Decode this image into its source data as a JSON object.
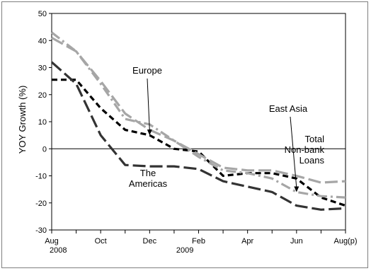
{
  "chart_data": {
    "type": "line",
    "title": "",
    "ylabel": "YOY Growth (%)",
    "xlabel": "",
    "ylim": [
      -30,
      50
    ],
    "yticks": [
      -30,
      -20,
      -10,
      0,
      10,
      20,
      30,
      40,
      50
    ],
    "x_range": [
      0,
      12
    ],
    "x_tick_positions": [
      0,
      1,
      2,
      3,
      4,
      5,
      6,
      7,
      8,
      9,
      10,
      11,
      12
    ],
    "x_tick_labels": [
      {
        "x": 0,
        "label": "Aug"
      },
      {
        "x": 2,
        "label": "Oct"
      },
      {
        "x": 4,
        "label": "Dec"
      },
      {
        "x": 6,
        "label": "Feb"
      },
      {
        "x": 8,
        "label": "Apr"
      },
      {
        "x": 10,
        "label": "Jun"
      },
      {
        "x": 12,
        "label": "Aug(p)"
      }
    ],
    "year_labels": [
      {
        "x": 0,
        "label": "2008"
      },
      {
        "x": 5,
        "label": "2009"
      }
    ],
    "grid": false,
    "zero_line": true,
    "series": [
      {
        "name": "Europe",
        "color": "#000000",
        "style": "dash",
        "x": [
          0,
          1,
          2,
          3,
          4,
          5,
          6,
          7,
          8,
          9,
          10,
          11,
          12
        ],
        "values": [
          25.5,
          25.5,
          15,
          7,
          5,
          0,
          -1,
          -10,
          -9,
          -9,
          -11,
          -18,
          -21
        ]
      },
      {
        "name": "The Americas",
        "color": "#333333",
        "style": "longdash",
        "x": [
          0,
          1,
          2,
          3,
          4,
          5,
          6,
          7,
          8,
          9,
          10,
          11,
          12
        ],
        "values": [
          32,
          24,
          5,
          -6,
          -6.5,
          -6.5,
          -7.5,
          -12,
          -14,
          -16,
          -21,
          -22.5,
          -22
        ]
      },
      {
        "name": "East Asia",
        "color": "#a6a6a6",
        "style": "dashdot",
        "x": [
          0,
          1,
          2,
          3,
          4,
          5,
          6,
          7,
          8,
          9,
          10,
          11,
          12
        ],
        "values": [
          43,
          36,
          24,
          11,
          9,
          3,
          -3,
          -8,
          -9,
          -11,
          -16,
          -17.5,
          -18
        ]
      },
      {
        "name": "Total Non-bank Loans",
        "color": "#a6a6a6",
        "style": "longdash",
        "x": [
          0,
          1,
          2,
          3,
          4,
          5,
          6,
          7,
          8,
          9,
          10,
          11,
          12
        ],
        "values": [
          41,
          36,
          25,
          13,
          7,
          3,
          -2,
          -7,
          -8,
          -8,
          -10,
          -12.5,
          -12
        ]
      }
    ],
    "annotations": [
      {
        "lines": [
          "Europe"
        ],
        "arrow_to": {
          "x": 4,
          "y": 5
        }
      },
      {
        "lines": [
          "The",
          "Americas"
        ]
      },
      {
        "lines": [
          "East Asia"
        ],
        "arrow_to": {
          "x": 10,
          "y": -16
        }
      },
      {
        "lines": [
          "Total",
          "Non-bank",
          "Loans"
        ]
      }
    ]
  }
}
